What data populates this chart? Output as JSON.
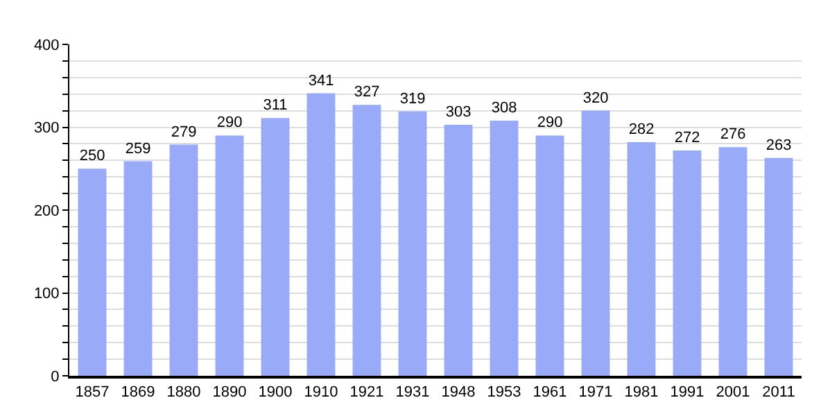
{
  "chart_data": {
    "type": "bar",
    "categories": [
      "1857",
      "1869",
      "1880",
      "1890",
      "1900",
      "1910",
      "1921",
      "1931",
      "1948",
      "1953",
      "1961",
      "1971",
      "1981",
      "1991",
      "2001",
      "2011"
    ],
    "values": [
      250,
      259,
      279,
      290,
      311,
      341,
      327,
      319,
      303,
      308,
      290,
      320,
      282,
      272,
      276,
      263
    ],
    "color": "#99aaf8",
    "ylim": [
      0,
      400
    ],
    "yticks": [
      0,
      {
        "value": 20,
        "label": null
      },
      {
        "value": 40,
        "label": null
      },
      {
        "value": 60,
        "label": null
      },
      {
        "value": 80,
        "label": null
      },
      100,
      {
        "value": 120,
        "label": null
      },
      {
        "value": 140,
        "label": null
      },
      {
        "value": 160,
        "label": null
      },
      {
        "value": 180,
        "label": null
      },
      200,
      {
        "value": 220,
        "label": null
      },
      {
        "value": 240,
        "label": null
      },
      {
        "value": 260,
        "label": null
      },
      {
        "value": 280,
        "label": null
      },
      300,
      {
        "value": 320,
        "label": null
      },
      {
        "value": 340,
        "label": null
      },
      {
        "value": 360,
        "label": null
      },
      {
        "value": 380,
        "label": null
      },
      400
    ],
    "grid": "y",
    "data_labels": true
  }
}
